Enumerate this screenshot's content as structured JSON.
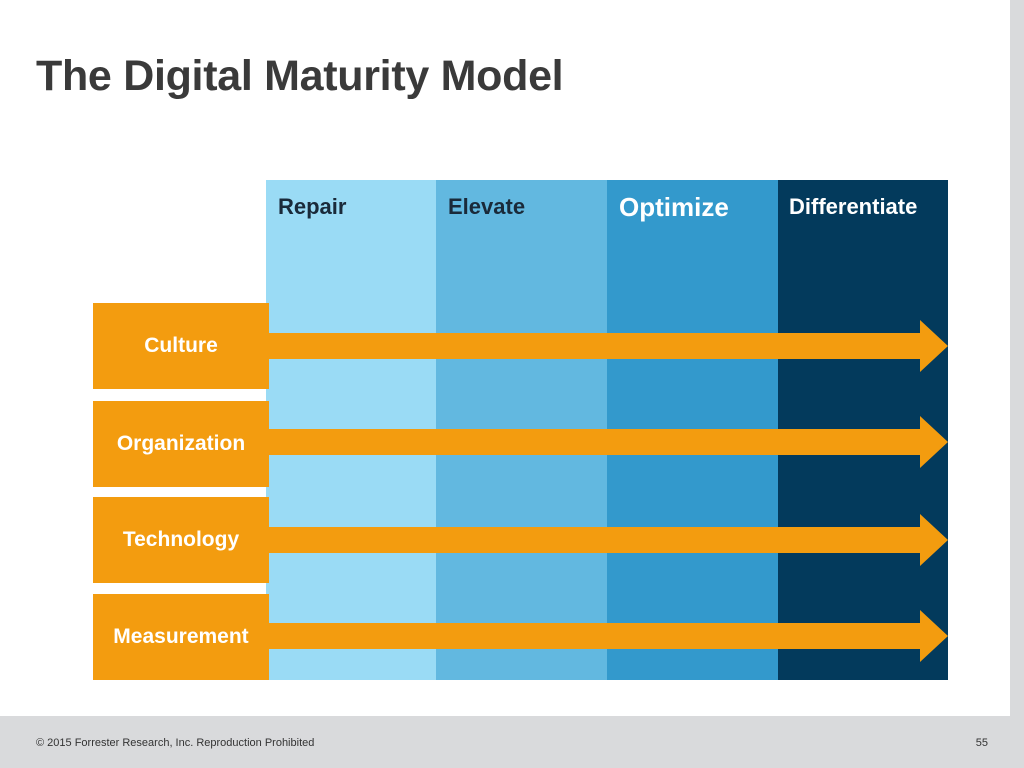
{
  "title": "The Digital Maturity Model",
  "stages": [
    "Repair",
    "Elevate",
    "Optimize",
    "Differentiate"
  ],
  "dimensions": [
    "Culture",
    "Organization",
    "Technology",
    "Measurement"
  ],
  "footer": {
    "copyright": "© 2015 Forrester Research, Inc. Reproduction Prohibited",
    "page_number": "55"
  },
  "colors": {
    "stage_repair": "#9adbf5",
    "stage_elevate": "#62b8e0",
    "stage_optimize": "#3399cc",
    "stage_differentiate": "#033a5c",
    "dimension_orange": "#f39c0f"
  }
}
